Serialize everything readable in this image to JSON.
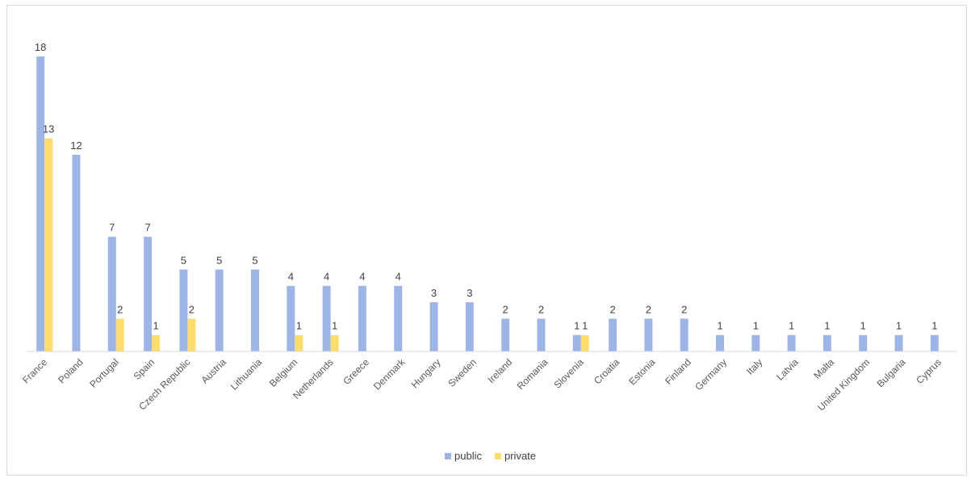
{
  "chart_data": {
    "type": "bar",
    "categories": [
      "France",
      "Poland",
      "Portugal",
      "Spain",
      "Czech Republic",
      "Austria",
      "Lithuania",
      "Belgium",
      "Netherlands",
      "Greece",
      "Denmark",
      "Hungary",
      "Sweden",
      "Ireland",
      "Romania",
      "Slovenia",
      "Croatia",
      "Estonia",
      "Finland",
      "Germany",
      "Italy",
      "Latvia",
      "Malta",
      "United Kingdom",
      "Bulgaria",
      "Cyprus"
    ],
    "series": [
      {
        "name": "public",
        "color": "#9db5e6",
        "values": [
          18,
          12,
          7,
          7,
          5,
          5,
          5,
          4,
          4,
          4,
          4,
          3,
          3,
          2,
          2,
          1,
          2,
          2,
          2,
          1,
          1,
          1,
          1,
          1,
          1,
          1
        ]
      },
      {
        "name": "private",
        "color": "#fddc6c",
        "values": [
          13,
          null,
          2,
          1,
          2,
          null,
          null,
          1,
          1,
          null,
          null,
          null,
          null,
          null,
          null,
          1,
          null,
          null,
          null,
          null,
          null,
          null,
          null,
          null,
          null,
          null
        ]
      }
    ],
    "ylim": [
      0,
      18
    ],
    "grid": false,
    "legend": "bottom",
    "data_labels": true
  }
}
